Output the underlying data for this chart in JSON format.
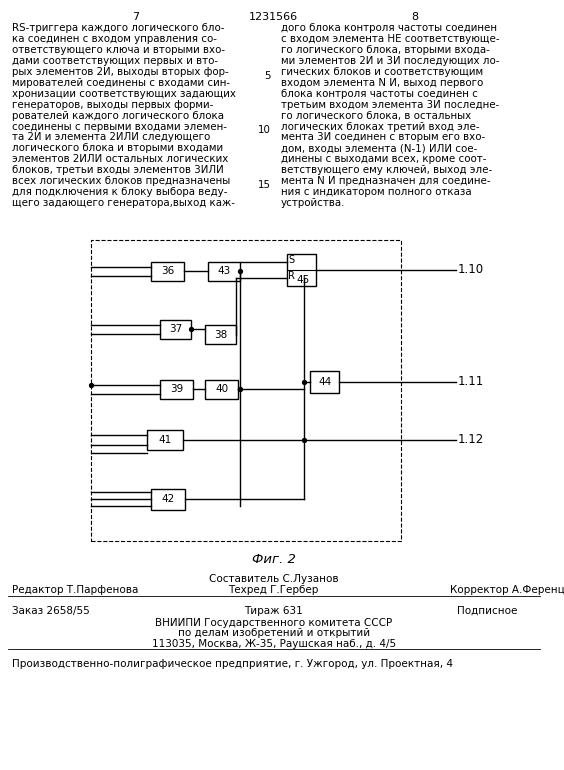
{
  "page_left": "7",
  "page_center": "1231566",
  "page_right": "8",
  "left_text_lines": [
    "RS-триггера каждого логического бло-",
    "ка соединен с входом управления со-",
    "ответствующего ключа и вторыми вхо-",
    "дами соответствующих первых и вто-",
    "рых элементов 2И, выходы вторых фор-",
    "мирователей соединены с входами син-",
    "хронизации соответствующих задающих",
    "генераторов, выходы первых форми-",
    "рователей каждого логического блока",
    "соединены с первыми входами элемен-",
    "та 2И и элемента 2ИЛИ следующего",
    "логического блока и вторыми входами",
    "элементов 2ИЛИ остальных логических",
    "блоков, третьи входы элементов 3ИЛИ",
    "всех логических блоков предназначены",
    "для подключения к блоку выбора веду-",
    "щего задающего генератора,выход каж-"
  ],
  "right_text_lines": [
    "дого блока контроля частоты соединен",
    "с входом элемента НЕ соответствующе-",
    "го логического блока, вторыми входа-",
    "ми элементов 2И и 3И последующих ло-",
    "гических блоков и соответствующим",
    "входом элемента N И, выход первого",
    "блока контроля частоты соединен с",
    "третьим входом элемента 3И последне-",
    "го логического блока, в остальных",
    "логических блоках третий вход эле-",
    "мента 3И соединен с вторым его вхо-",
    "дом, входы элемента (N-1) ИЛИ сое-",
    "динены с выходами всех, кроме соот-",
    "ветствующего ему ключей, выход эле-",
    "мента N И предназначен для соедине-",
    "ния с индикатором полного отказа",
    "устройства."
  ],
  "line_numbers": [
    [
      5,
      4
    ],
    [
      10,
      9
    ],
    [
      15,
      14
    ]
  ],
  "fig_caption": "Фиг. 2",
  "footer_composer": "Составитель С.Лузанов",
  "footer_editor": "Редактор Т.Парфенова",
  "footer_tech": "Техред Г.Гербер",
  "footer_corrector": "Корректор А.Ференц",
  "footer_order": "Заказ 2658/55",
  "footer_tirazh": "Тираж 631",
  "footer_podpisnoe": "Подписное",
  "footer_org1": "ВНИИПИ Государственного комитета СССР",
  "footer_org2": "по делам изобретений и открытий",
  "footer_org3": "113035, Москва, Ж-35, Раушская наб., д. 4/5",
  "footer_prod": "Производственно-полиграфическое предприятие, г. Ужгород, ул. Проектная, 4",
  "bg_color": "#ffffff"
}
